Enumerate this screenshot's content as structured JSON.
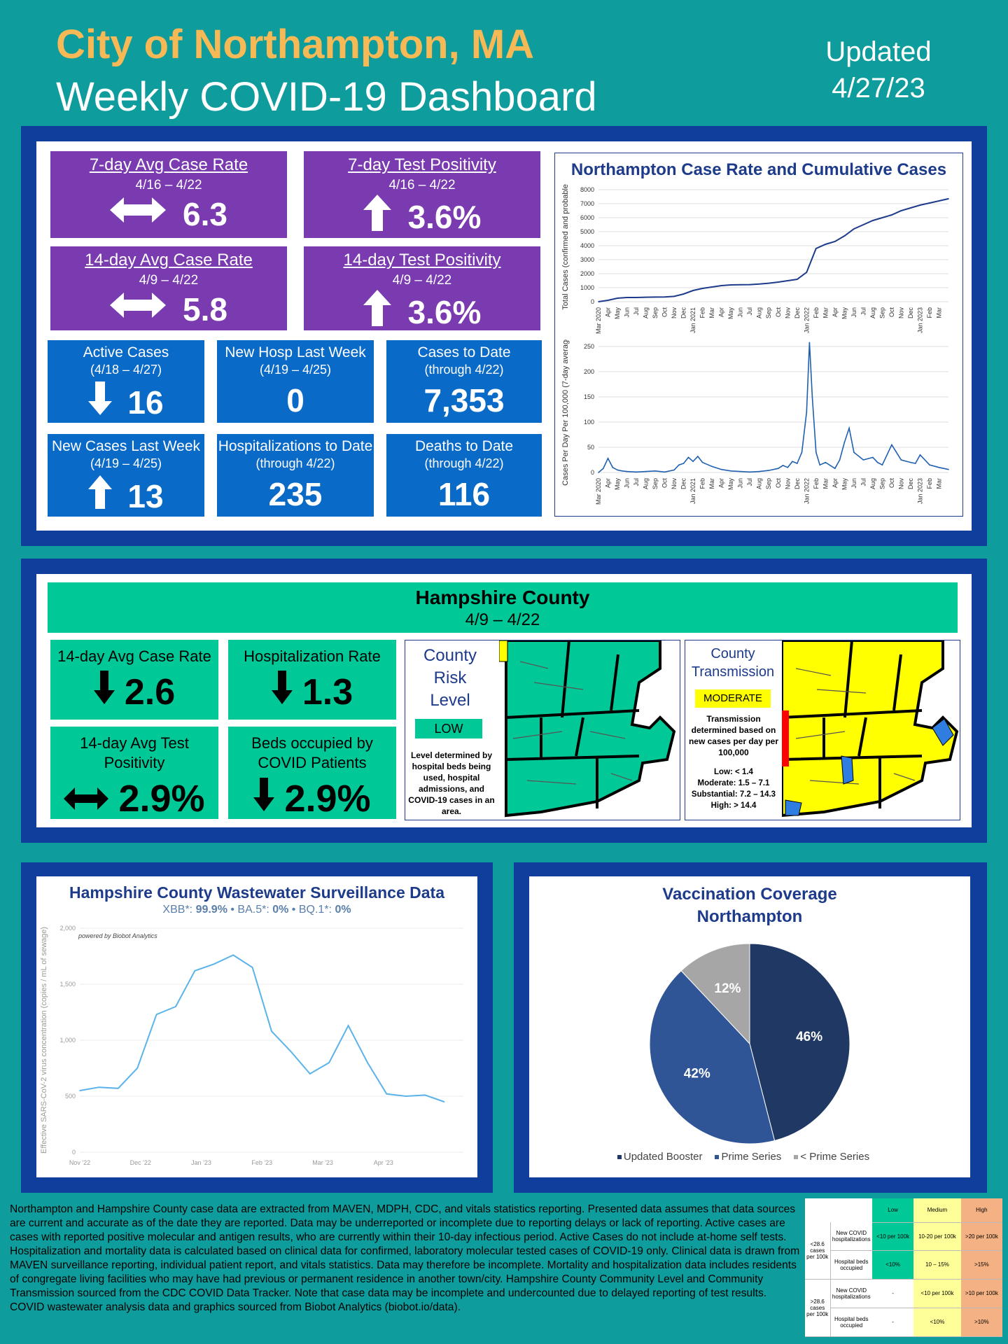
{
  "header": {
    "city": "City of Northampton, MA",
    "subtitle": "Weekly COVID-19 Dashboard",
    "updated_label": "Updated",
    "updated_date": "4/27/23"
  },
  "city_metrics": {
    "case_rate_7": {
      "label": "7-day Avg Case Rate",
      "dates": "4/16 – 4/22",
      "value": "6.3",
      "trend": "flat"
    },
    "test_pos_7": {
      "label": "7-day Test Positivity",
      "dates": "4/16 – 4/22",
      "value": "3.6%",
      "trend": "up"
    },
    "case_rate_14": {
      "label": "14-day Avg Case Rate",
      "dates": "4/9 – 4/22",
      "value": "5.8",
      "trend": "flat"
    },
    "test_pos_14": {
      "label": "14-day Test Positivity",
      "dates": "4/9 – 4/22",
      "value": "3.6%",
      "trend": "up"
    },
    "active_cases": {
      "label": "Active Cases",
      "dates": "(4/18 – 4/27)",
      "value": "16",
      "trend": "down"
    },
    "new_hosp": {
      "label": "New Hosp Last Week",
      "dates": "(4/19 – 4/25)",
      "value": "0"
    },
    "cases_to_date": {
      "label": "Cases to Date",
      "dates": "(through 4/22)",
      "value": "7,353"
    },
    "new_cases": {
      "label": "New Cases Last Week",
      "dates": "(4/19 – 4/25)",
      "value": "13",
      "trend": "up"
    },
    "hosp_to_date": {
      "label": "Hospitalizations to Date",
      "dates": "(through 4/22)",
      "value": "235"
    },
    "deaths_to_date": {
      "label": "Deaths to Date",
      "dates": "(through 4/22)",
      "value": "116"
    }
  },
  "county": {
    "title": "Hampshire County",
    "dates": "4/9 – 4/22",
    "case_rate": {
      "label": "14-day Avg Case Rate",
      "value": "2.6",
      "trend": "down"
    },
    "hosp_rate": {
      "label": "Hospitalization Rate",
      "value": "1.3",
      "trend": "down"
    },
    "test_pos": {
      "label": "14-day Avg Test Positivity",
      "value": "2.9%",
      "trend": "flat"
    },
    "beds": {
      "label": "Beds occupied by COVID Patients",
      "value": "2.9%",
      "trend": "down"
    },
    "risk": {
      "title_1": "County",
      "title_2": "Risk",
      "title_3": "Level",
      "level": "LOW",
      "note": "Level determined by hospital beds being used, hospital admissions, and COVID-19 cases in an area."
    },
    "transmission": {
      "title_1": "County",
      "title_2": "Transmission",
      "level": "MODERATE",
      "note": "Transmission determined based on new cases per day per 100,000",
      "low": "Low: < 1.4",
      "moderate": "Moderate: 1.5 – 7.1",
      "substantial": "Substantial: 7.2 – 14.3",
      "high": "High: > 14.4"
    }
  },
  "colors": {
    "purple": "#7a3ab0",
    "blue": "#0a6ac8",
    "green": "#00c896",
    "navy": "#0f3e9c",
    "teal": "#0f9c9c",
    "orange_title": "#f7b955"
  },
  "chart_data": [
    {
      "type": "line",
      "title": "Northampton Case Rate and Cumulative Cases",
      "ylabel": "Total Cases (confirmed and probable)",
      "ylim": [
        0,
        8000
      ],
      "yticks": [
        "0",
        "1000",
        "2000",
        "3000",
        "4000",
        "5000",
        "6000",
        "7000",
        "8000"
      ],
      "x_ticks": [
        "Mar 2020",
        "Apr",
        "May",
        "Jun",
        "Jul",
        "Aug",
        "Sep",
        "Oct",
        "Nov",
        "Dec",
        "Jan 2021",
        "Feb",
        "Mar",
        "Apr",
        "May",
        "Jun",
        "Jul",
        "Aug",
        "Sep",
        "Oct",
        "Nov",
        "Dec",
        "Jan 2022",
        "Feb",
        "Mar",
        "Apr",
        "May",
        "Jun",
        "Jul",
        "Aug",
        "Sep",
        "Oct",
        "Nov",
        "Dec",
        "Jan 2023",
        "Feb",
        "Mar"
      ],
      "x": [
        0,
        1,
        2,
        3,
        4,
        5,
        6,
        7,
        8,
        9,
        10,
        11,
        12,
        13,
        14,
        15,
        16,
        17,
        18,
        19,
        20,
        21,
        22,
        23,
        24,
        25,
        26,
        27,
        28,
        29,
        30,
        31,
        32,
        33,
        34,
        35,
        36,
        37
      ],
      "values": [
        0,
        100,
        250,
        300,
        300,
        320,
        330,
        340,
        380,
        550,
        800,
        950,
        1050,
        1150,
        1200,
        1210,
        1220,
        1260,
        1320,
        1400,
        1500,
        1600,
        2100,
        3800,
        4100,
        4300,
        4700,
        5200,
        5500,
        5800,
        6000,
        6200,
        6500,
        6700,
        6900,
        7050,
        7200,
        7353
      ]
    },
    {
      "type": "line",
      "ylabel": "Cases Per Day Per 100,000 (7-day average)",
      "ylim": [
        0,
        250
      ],
      "yticks": [
        "0",
        "50",
        "100",
        "150",
        "200",
        "250"
      ],
      "x_ticks": [
        "Mar 2020",
        "Apr",
        "May",
        "Jun",
        "Jul",
        "Aug",
        "Sep",
        "Oct",
        "Nov",
        "Dec",
        "Jan 2021",
        "Feb",
        "Mar",
        "Apr",
        "May",
        "Jun",
        "Jul",
        "Aug",
        "Sep",
        "Oct",
        "Nov",
        "Dec",
        "Jan 2022",
        "Feb",
        "Mar",
        "Apr",
        "May",
        "Jun",
        "Jul",
        "Aug",
        "Sep",
        "Oct",
        "Nov",
        "Dec",
        "Jan 2023",
        "Feb",
        "Mar"
      ],
      "x": [
        0,
        0.5,
        1,
        1.5,
        2,
        2.5,
        3,
        4,
        5,
        6,
        7,
        8,
        8.5,
        9,
        9.5,
        10,
        10.5,
        11,
        12,
        13,
        14,
        15,
        16,
        17,
        18,
        19,
        19.5,
        20,
        20.5,
        21,
        21.5,
        22,
        22.3,
        22.6,
        23,
        23.4,
        24,
        25,
        25.5,
        26,
        26.5,
        27,
        28,
        29,
        29.5,
        30,
        31,
        32,
        33,
        33.5,
        34,
        35,
        36,
        36.5,
        37
      ],
      "values": [
        0,
        8,
        28,
        10,
        5,
        3,
        2,
        1,
        2,
        3,
        1,
        5,
        15,
        18,
        30,
        22,
        32,
        20,
        12,
        6,
        3,
        2,
        1,
        2,
        4,
        8,
        14,
        10,
        22,
        18,
        40,
        120,
        258,
        150,
        40,
        15,
        20,
        8,
        25,
        60,
        88,
        40,
        25,
        30,
        20,
        15,
        55,
        25,
        20,
        18,
        35,
        15,
        10,
        8,
        6
      ]
    },
    {
      "type": "line",
      "title": "Hampshire County Wastewater Surveillance Data",
      "subtitle_parts": [
        "XBB*: ",
        "99.9%",
        " • BA.5*: ",
        "0%",
        " • BQ.1*: ",
        "0%"
      ],
      "credit": "powered by Biobot Analytics",
      "ylabel": "Effective SARS-CoV-2 virus concentration (copies / mL of sewage)",
      "ylim": [
        0,
        2000
      ],
      "yticks": [
        "0",
        "500",
        "1,000",
        "1,500",
        "2,000"
      ],
      "x_ticks": [
        "Nov '22",
        "Dec '22",
        "Jan '23",
        "Feb '23",
        "Mar '23",
        "Apr '23"
      ],
      "x": [
        0,
        0.3,
        0.6,
        0.9,
        1.2,
        1.5,
        1.8,
        2.1,
        2.4,
        2.7,
        3.0,
        3.3,
        3.6,
        3.9,
        4.2,
        4.5,
        4.8,
        5.1,
        5.4,
        5.7
      ],
      "values": [
        550,
        580,
        570,
        750,
        1230,
        1300,
        1620,
        1680,
        1760,
        1650,
        1080,
        900,
        700,
        800,
        1130,
        800,
        520,
        500,
        510,
        450
      ]
    },
    {
      "type": "pie",
      "title": "Vaccination Coverage Northampton",
      "categories": [
        "Updated Booster",
        "Prime Series",
        "< Prime Series"
      ],
      "values": [
        46,
        42,
        12
      ],
      "labels": [
        "46%",
        "42%",
        "12%"
      ],
      "colors": [
        "#1f3864",
        "#2f5597",
        "#a6a6a6"
      ]
    }
  ],
  "footnote": "Northampton and Hampshire County case data are extracted from MAVEN, MDPH, CDC, and vitals statistics reporting. Presented data assumes that data sources are current and accurate as of the date they are reported. Data may be underreported or incomplete due to reporting delays or lack of reporting. Active cases are cases with reported positive molecular and antigen results, who are currently within their 10-day infectious period. Active Cases do not include at-home self tests. Hospitalization and mortality data is calculated based on clinical data for confirmed, laboratory molecular tested cases of COVID-19 only. Clinical data is drawn from MAVEN surveillance reporting, individual patient report, and vitals statistics. Data may therefore be incomplete. Mortality and hospitalization data includes residents of congregate living facilities who may have had previous or permanent residence in another town/city. Hampshire County Community Level and Community Transmission sourced from the CDC COVID Data Tracker. Note that case data may be incomplete and undercounted due to delayed reporting of test results. COVID wastewater analysis data and graphics sourced from Biobot Analytics (biobot.io/data).",
  "level_table": {
    "headers": [
      "Low",
      "Medium",
      "High"
    ],
    "group1": "<28.6 cases per 100k",
    "group2": ">28.6 cases per 100k",
    "row_hosp": "New COVID hospitalizations",
    "row_beds": "Hospital beds occupied",
    "g1_hosp": [
      "<10 per 100k",
      "10-20 per 100k",
      ">20 per 100k"
    ],
    "g1_beds": [
      "<10%",
      "10 – 15%",
      ">15%"
    ],
    "g2_hosp": [
      "-",
      "<10 per 100k",
      ">10 per 100k"
    ],
    "g2_beds": [
      "-",
      "<10%",
      ">10%"
    ]
  }
}
